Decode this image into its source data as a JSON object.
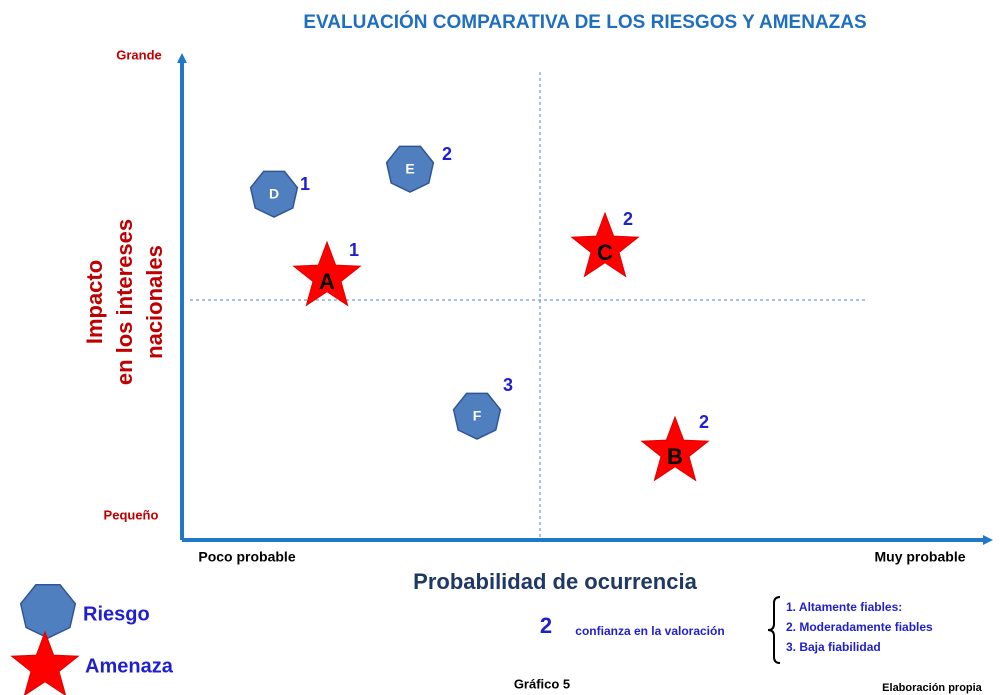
{
  "title": "EVALUACIÓN COMPARATIVA DE LOS RIESGOS Y AMENAZAS",
  "y_axis": {
    "label_lines": [
      "Impacto",
      "en los intereses",
      "nacionales"
    ],
    "high": "Grande",
    "low": "Pequeño"
  },
  "x_axis": {
    "label": "Probabilidad de ocurrencia",
    "low": "Poco probable",
    "high": "Muy probable"
  },
  "items": [
    {
      "label": "D",
      "shape": "heptagon",
      "confidence": 1
    },
    {
      "label": "E",
      "shape": "heptagon",
      "confidence": 2
    },
    {
      "label": "A",
      "shape": "star",
      "confidence": 1
    },
    {
      "label": "C",
      "shape": "star",
      "confidence": 2
    },
    {
      "label": "F",
      "shape": "heptagon",
      "confidence": 3
    },
    {
      "label": "B",
      "shape": "star",
      "confidence": 2
    }
  ],
  "legend": [
    {
      "label": "Riesgo",
      "shape": "heptagon"
    },
    {
      "label": "Amenaza",
      "shape": "star"
    }
  ],
  "confidence_note": {
    "example": "2",
    "text": "confianza en la valoración",
    "levels": [
      "1.  Altamente fiables:",
      "2.  Moderadamente fiables",
      "3.  Baja fiabilidad"
    ]
  },
  "caption": "Gráfico 5",
  "source": "Elaboración propia"
}
